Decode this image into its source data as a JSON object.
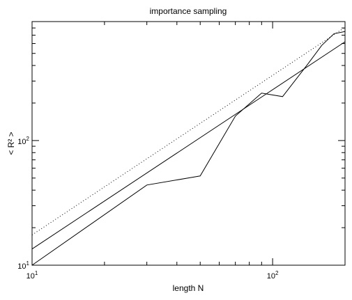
{
  "chart_data": {
    "type": "line",
    "title": "importance sampling",
    "xlabel": "length N",
    "ylabel": "< R² >",
    "xscale": "log",
    "yscale": "log",
    "xlim": [
      10,
      200
    ],
    "ylim": [
      10,
      900
    ],
    "x_ticks": [
      {
        "value": 10,
        "base": "10",
        "exp": "1"
      },
      {
        "value": 100,
        "base": "10",
        "exp": "2"
      }
    ],
    "y_ticks": [
      {
        "value": 10,
        "base": "10",
        "exp": "1"
      },
      {
        "value": 100,
        "base": "10",
        "exp": "2"
      }
    ],
    "grid": false,
    "series": [
      {
        "style": "solid",
        "x": [
          10,
          30,
          50,
          70,
          90,
          110,
          140,
          160,
          180,
          200
        ],
        "y": [
          10,
          44,
          52,
          157,
          240,
          225,
          410,
          580,
          720,
          750
        ]
      },
      {
        "style": "solid",
        "x": [
          10,
          200
        ],
        "y": [
          13.5,
          620
        ]
      },
      {
        "style": "dotted",
        "x": [
          10,
          200
        ],
        "y": [
          17.5,
          810
        ]
      }
    ]
  }
}
